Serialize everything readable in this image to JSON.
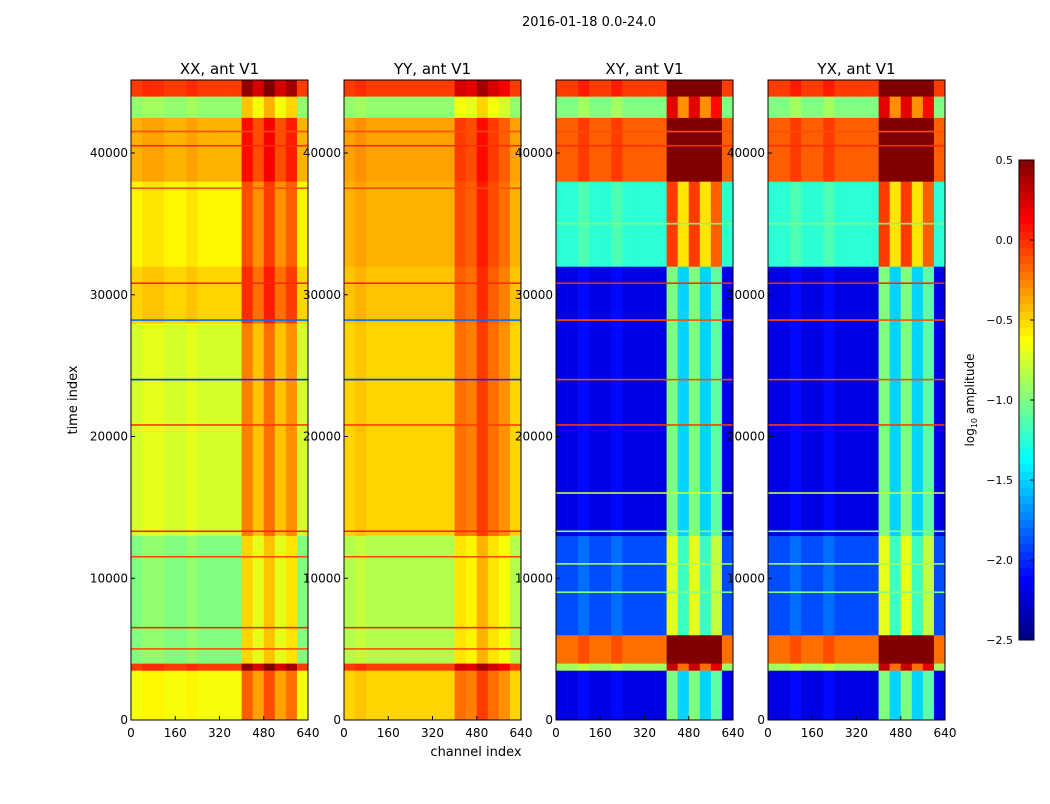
{
  "chart_data": {
    "type": "heatmap",
    "title": "2016-01-18 0.0-24.0",
    "xlabel": "channel index",
    "ylabel": "time index",
    "xlim": [
      0,
      640
    ],
    "ylim": [
      0,
      45150
    ],
    "xticks": [
      "0",
      "160",
      "320",
      "480",
      "640"
    ],
    "xtick_values": [
      0,
      160,
      320,
      480,
      640
    ],
    "yticks": [
      "0",
      "10000",
      "20000",
      "30000",
      "40000"
    ],
    "ytick_values": [
      0,
      10000,
      20000,
      30000,
      40000
    ],
    "colorbar": {
      "label_prefix": "log",
      "label_sub": "10",
      "label_suffix": " amplitude",
      "range": [
        -2.5,
        0.5
      ],
      "ticks": [
        "0.5",
        "0.0",
        "−0.5",
        "−1.0",
        "−1.5",
        "−2.0",
        "−2.5"
      ],
      "tick_values": [
        0.5,
        0.0,
        -0.5,
        -1.0,
        -1.5,
        -2.0,
        -2.5
      ],
      "colormap": "jet"
    },
    "channel_bin_width": 40,
    "panels": [
      {
        "title": "XX, ant V1",
        "time_bands": [
          [
            0,
            3500,
            -0.65
          ],
          [
            3500,
            4000,
            -0.05
          ],
          [
            4000,
            13000,
            -1.0
          ],
          [
            13000,
            28000,
            -0.75
          ],
          [
            28000,
            32000,
            -0.5
          ],
          [
            32000,
            38000,
            -0.6
          ],
          [
            38000,
            42500,
            -0.4
          ],
          [
            42500,
            44000,
            -0.95
          ],
          [
            44000,
            45150,
            -0.05
          ]
        ],
        "channel_offsets": [
          0,
          0.05,
          0.05,
          0,
          0,
          0.05,
          0,
          0,
          0,
          0,
          0.5,
          0.3,
          0.55,
          0.3,
          0.45,
          0
        ],
        "lines": [
          [
            5000,
            -0.1
          ],
          [
            6500,
            0.0
          ],
          [
            11500,
            -0.1
          ],
          [
            13300,
            0.0
          ],
          [
            20800,
            -0.05
          ],
          [
            24000,
            -2.0
          ],
          [
            28200,
            -1.8
          ],
          [
            30800,
            0.0
          ],
          [
            37500,
            -0.1
          ],
          [
            40500,
            0.0
          ],
          [
            41500,
            -0.1
          ]
        ]
      },
      {
        "title": "YY, ant V1",
        "time_bands": [
          [
            0,
            3500,
            -0.5
          ],
          [
            3500,
            4000,
            -0.05
          ],
          [
            4000,
            13000,
            -0.85
          ],
          [
            13000,
            28000,
            -0.5
          ],
          [
            28000,
            32000,
            -0.45
          ],
          [
            32000,
            38000,
            -0.4
          ],
          [
            38000,
            42500,
            -0.35
          ],
          [
            42500,
            44000,
            -0.95
          ],
          [
            44000,
            45150,
            -0.05
          ]
        ],
        "channel_offsets": [
          0,
          0.05,
          0,
          0,
          0,
          0,
          0,
          0,
          0,
          0,
          0.3,
          0.25,
          0.45,
          0.3,
          0.2,
          0
        ],
        "lines": [
          [
            5000,
            -0.1
          ],
          [
            6500,
            0.0
          ],
          [
            11500,
            -0.1
          ],
          [
            13300,
            0.0
          ],
          [
            20800,
            -0.05
          ],
          [
            24000,
            -2.0
          ],
          [
            28200,
            -1.8
          ],
          [
            30800,
            0.0
          ],
          [
            37500,
            -0.1
          ],
          [
            40500,
            0.0
          ],
          [
            41500,
            -0.1
          ]
        ]
      },
      {
        "title": "XY, ant V1",
        "time_bands": [
          [
            0,
            3500,
            -2.2
          ],
          [
            3500,
            4000,
            -0.9
          ],
          [
            4000,
            6000,
            -0.2
          ],
          [
            6000,
            13000,
            -1.9
          ],
          [
            13000,
            32000,
            -2.2
          ],
          [
            32000,
            38000,
            -1.25
          ],
          [
            38000,
            42500,
            -0.15
          ],
          [
            42500,
            44000,
            -1.0
          ],
          [
            44000,
            45150,
            -0.05
          ]
        ],
        "channel_offsets": [
          0,
          0,
          0.1,
          0,
          0,
          0.1,
          0,
          0,
          0,
          0,
          1.2,
          0.7,
          1.2,
          0.7,
          1.1,
          0
        ],
        "lines": [
          [
            9000,
            -1.0
          ],
          [
            11000,
            -0.9
          ],
          [
            13300,
            -1.0
          ],
          [
            16000,
            -0.8
          ],
          [
            20800,
            -0.05
          ],
          [
            24000,
            -0.1
          ],
          [
            28200,
            -0.1
          ],
          [
            30800,
            0.0
          ],
          [
            35000,
            -1.0
          ],
          [
            40500,
            0.0
          ],
          [
            41500,
            -0.1
          ]
        ]
      },
      {
        "title": "YX, ant V1",
        "time_bands": [
          [
            0,
            3500,
            -2.2
          ],
          [
            3500,
            4000,
            -0.9
          ],
          [
            4000,
            6000,
            -0.2
          ],
          [
            6000,
            13000,
            -1.9
          ],
          [
            13000,
            32000,
            -2.2
          ],
          [
            32000,
            38000,
            -1.25
          ],
          [
            38000,
            42500,
            -0.15
          ],
          [
            42500,
            44000,
            -1.0
          ],
          [
            44000,
            45150,
            -0.05
          ]
        ],
        "channel_offsets": [
          0,
          0,
          0.1,
          0,
          0,
          0.1,
          0,
          0,
          0,
          0,
          1.2,
          0.7,
          1.2,
          0.7,
          1.1,
          0
        ],
        "lines": [
          [
            9000,
            -1.0
          ],
          [
            11000,
            -0.9
          ],
          [
            13300,
            -1.0
          ],
          [
            16000,
            -0.8
          ],
          [
            20800,
            -0.05
          ],
          [
            24000,
            -0.1
          ],
          [
            28200,
            -0.1
          ],
          [
            30800,
            0.0
          ],
          [
            35000,
            -1.0
          ],
          [
            40500,
            0.0
          ],
          [
            41500,
            -0.1
          ]
        ]
      }
    ]
  }
}
